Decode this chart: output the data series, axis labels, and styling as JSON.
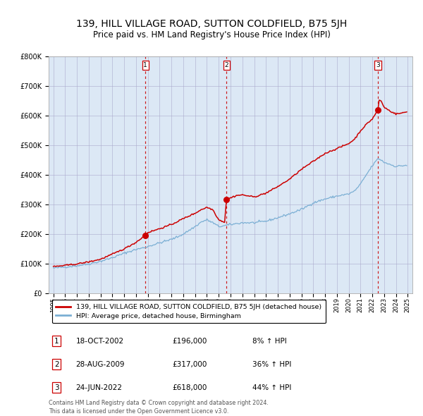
{
  "title": "139, HILL VILLAGE ROAD, SUTTON COLDFIELD, B75 5JH",
  "subtitle": "Price paid vs. HM Land Registry's House Price Index (HPI)",
  "title_fontsize": 10,
  "subtitle_fontsize": 8.5,
  "background_color": "#dce8f5",
  "ylim": [
    0,
    800000
  ],
  "yticks": [
    0,
    100000,
    200000,
    300000,
    400000,
    500000,
    600000,
    700000,
    800000
  ],
  "ytick_labels": [
    "£0",
    "£100K",
    "£200K",
    "£300K",
    "£400K",
    "£500K",
    "£600K",
    "£700K",
    "£800K"
  ],
  "sale_prices": [
    196000,
    317000,
    618000
  ],
  "sale_labels": [
    "1",
    "2",
    "3"
  ],
  "sale_decimal": [
    2002.79,
    2009.65,
    2022.47
  ],
  "sale_info": [
    {
      "label": "1",
      "date": "18-OCT-2002",
      "price": "£196,000",
      "hpi": "8% ↑ HPI"
    },
    {
      "label": "2",
      "date": "28-AUG-2009",
      "price": "£317,000",
      "hpi": "36% ↑ HPI"
    },
    {
      "label": "3",
      "date": "24-JUN-2022",
      "price": "£618,000",
      "hpi": "44% ↑ HPI"
    }
  ],
  "legend_line1": "139, HILL VILLAGE ROAD, SUTTON COLDFIELD, B75 5JH (detached house)",
  "legend_line2": "HPI: Average price, detached house, Birmingham",
  "footer1": "Contains HM Land Registry data © Crown copyright and database right 2024.",
  "footer2": "This data is licensed under the Open Government Licence v3.0.",
  "red_color": "#cc0000",
  "blue_color": "#7bafd4",
  "dashed_color": "#cc0000",
  "grid_color": "#aaaacc",
  "xlim": [
    1994.6,
    2025.4
  ]
}
